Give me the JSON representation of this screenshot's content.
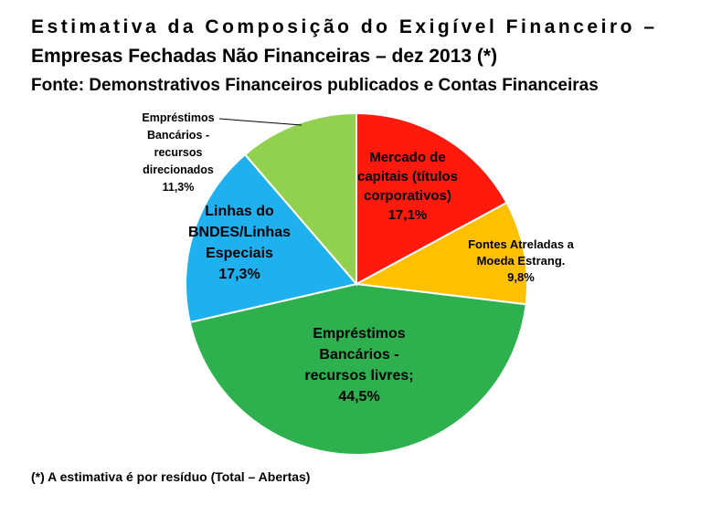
{
  "chart_data": {
    "type": "pie",
    "title": [
      "Estimativa da Composição do Exigível Financeiro –",
      "Empresas Fechadas Não Financeiras  – dez 2013 (*)"
    ],
    "subtitle": "Fonte: Demonstrativos Financeiros publicados e Contas Financeiras",
    "categories": [
      [
        "Mercado de",
        "capitais (títulos",
        "corporativos)"
      ],
      [
        "Fontes Atreladas a",
        "Moeda Estrang."
      ],
      [
        "Empréstimos",
        "Bancários -",
        "recursos livres;"
      ],
      [
        "Linhas do",
        "BNDES/Linhas",
        "Especiais"
      ],
      [
        "Empréstimos",
        "Bancários -",
        "recursos",
        "direcionados"
      ]
    ],
    "values": [
      17.1,
      9.8,
      44.5,
      17.3,
      11.3
    ],
    "value_labels": [
      "17,1%",
      "9,8%",
      "44,5%",
      "17,3%",
      "11,3%"
    ],
    "colors": [
      "#ff1a0d",
      "#ffc000",
      "#2eb04f",
      "#1fb0f0",
      "#92d050"
    ],
    "footnote": "(*) A estimativa é por resíduo (Total – Abertas)"
  }
}
